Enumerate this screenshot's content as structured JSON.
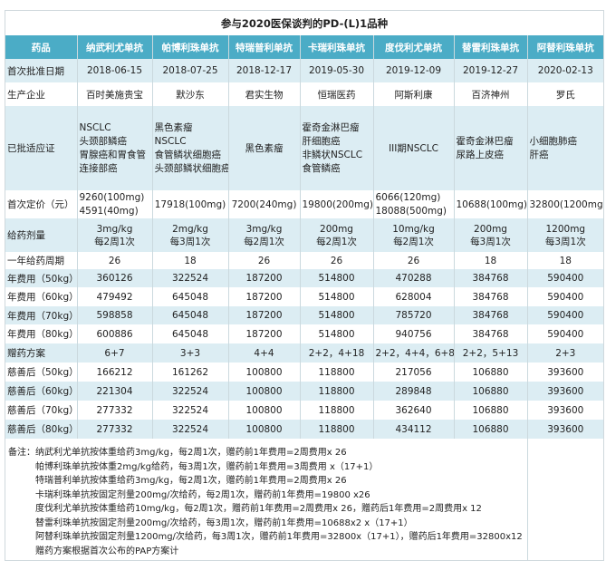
{
  "title": "参与2020医保谈判的PD-(L)1品种",
  "header": [
    "药品",
    "纳武利尤单抗",
    "帕博利珠单抗",
    "特瑞普利单抗",
    "卡瑞利珠单抗",
    "度伐利尤单抗",
    "替雷利珠单抗",
    "阿替利珠单抗"
  ],
  "rows": [
    {
      "label": "首次批准日期",
      "cells": [
        "2018-06-15",
        "2018-07-25",
        "2018-12-17",
        "2019-05-30",
        "2019-12-09",
        "2019-12-27",
        "2020-02-13"
      ]
    },
    {
      "label": "生产企业",
      "cells": [
        "百时美施贵宝",
        "默沙东",
        "君实生物",
        "恒瑞医药",
        "阿斯利康",
        "百济神州",
        "罗氏"
      ]
    },
    {
      "label": "已批适应证",
      "cells": [
        [
          "NSCLC",
          "头颈部鳞癌",
          "胃腺癌和胃食管",
          "连接部癌"
        ],
        [
          "黑色素瘤",
          "NSCLC",
          "食管鳞状细胞癌",
          "头颈部鳞状细胞癌"
        ],
        [
          "黑色素瘤"
        ],
        [
          "霍奇金淋巴瘤",
          "肝细胞癌",
          "非鳞状NSCLC",
          "食管鳞癌"
        ],
        [
          "III期NSCLC"
        ],
        [
          "霍奇金淋巴瘤",
          "尿路上皮癌"
        ],
        [
          "小细胞肺癌",
          "肝癌"
        ]
      ]
    },
    {
      "label": "首次定价（元）",
      "cells": [
        [
          "9260(100mg)",
          "4591(40mg)"
        ],
        [
          "17918(100mg)"
        ],
        [
          "7200(240mg)"
        ],
        [
          "19800(200mg)"
        ],
        [
          "6066(120mg)",
          "18088(500mg)"
        ],
        [
          "10688(100mg)"
        ],
        [
          "32800(1200mg)"
        ]
      ]
    },
    {
      "label": "给药剂量",
      "cells": [
        [
          "3mg/kg",
          "每2周1次"
        ],
        [
          "2mg/kg",
          "每3周1次"
        ],
        [
          "3mg/kg",
          "每2周1次"
        ],
        [
          "200mg",
          "每2周1次"
        ],
        [
          "10mg/kg",
          "每2周1次"
        ],
        [
          "200mg",
          "每3周1次"
        ],
        [
          "1200mg",
          "每3周1次"
        ]
      ]
    },
    {
      "label": "一年给药周期",
      "cells": [
        "26",
        "18",
        "26",
        "26",
        "26",
        "18",
        "18"
      ]
    },
    {
      "label": "年费用（50kg）",
      "cells": [
        "360126",
        "322524",
        "187200",
        "514800",
        "470288",
        "384768",
        "590400"
      ]
    },
    {
      "label": "年费用（60kg）",
      "cells": [
        "479492",
        "645048",
        "187200",
        "514800",
        "628004",
        "384768",
        "590400"
      ]
    },
    {
      "label": "年费用（70kg）",
      "cells": [
        "598858",
        "645048",
        "187200",
        "514800",
        "785720",
        "384768",
        "590400"
      ]
    },
    {
      "label": "年费用（80kg）",
      "cells": [
        "600886",
        "645048",
        "187200",
        "514800",
        "940756",
        "384768",
        "590400"
      ]
    },
    {
      "label": "赠药方案",
      "cells": [
        "6+7",
        "3+3",
        "4+4",
        "2+2，4+18",
        "2+2，4+4，6+8",
        "2+2，5+13",
        "2+3"
      ]
    },
    {
      "label": "慈善后（50kg）",
      "cells": [
        "166212",
        "161262",
        "100800",
        "118800",
        "217056",
        "106880",
        "393600"
      ]
    },
    {
      "label": "慈善后（60kg）",
      "cells": [
        "221304",
        "322524",
        "100800",
        "118800",
        "289848",
        "106880",
        "393600"
      ]
    },
    {
      "label": "慈善后（70kg）",
      "cells": [
        "277332",
        "322524",
        "100800",
        "118800",
        "362640",
        "106880",
        "393600"
      ]
    },
    {
      "label": "慈善后（80kg）",
      "cells": [
        "277332",
        "322524",
        "100800",
        "118800",
        "434112",
        "106880",
        "393600"
      ]
    }
  ],
  "notes": [
    "备注：纳武利尤单抗按体重给药3mg/kg，每2周1次，赠药前1年费用=2周费用x 26",
    "帕博利珠单抗按体重2mg/kg给药，每3周1次，赠药前1年费用=3周费用 x（17+1）",
    "特瑞普利单抗按体重给药3mg/kg，每2周1次，赠药前1年费用=2周费用x 26",
    "卡瑞利珠单抗按固定剂量200mg/次给药，每2周1次，赠药前1年费用=19800 x26",
    "度伐利尤单抗按体重给药10mg/kg，每2周1次，赠药前1年费用=2周费用x 26，赠药后1年费用=2周费用x 12",
    "替雷利珠单抗按固定剂量200mg/次给药，每3周1次，赠药前1年费用=10688x2 x（17+1）",
    "阿替利珠单抗按固定剂量1200mg/次给药，每3周1次，赠药前1年费用=32800x（17+1），赠药后1年费用=32800x12",
    "赠药方案根据首次公布的PAP方案计"
  ],
  "colors": {
    "header_bg": "#4bacc6",
    "stripe_bg": "#dcedf3"
  }
}
